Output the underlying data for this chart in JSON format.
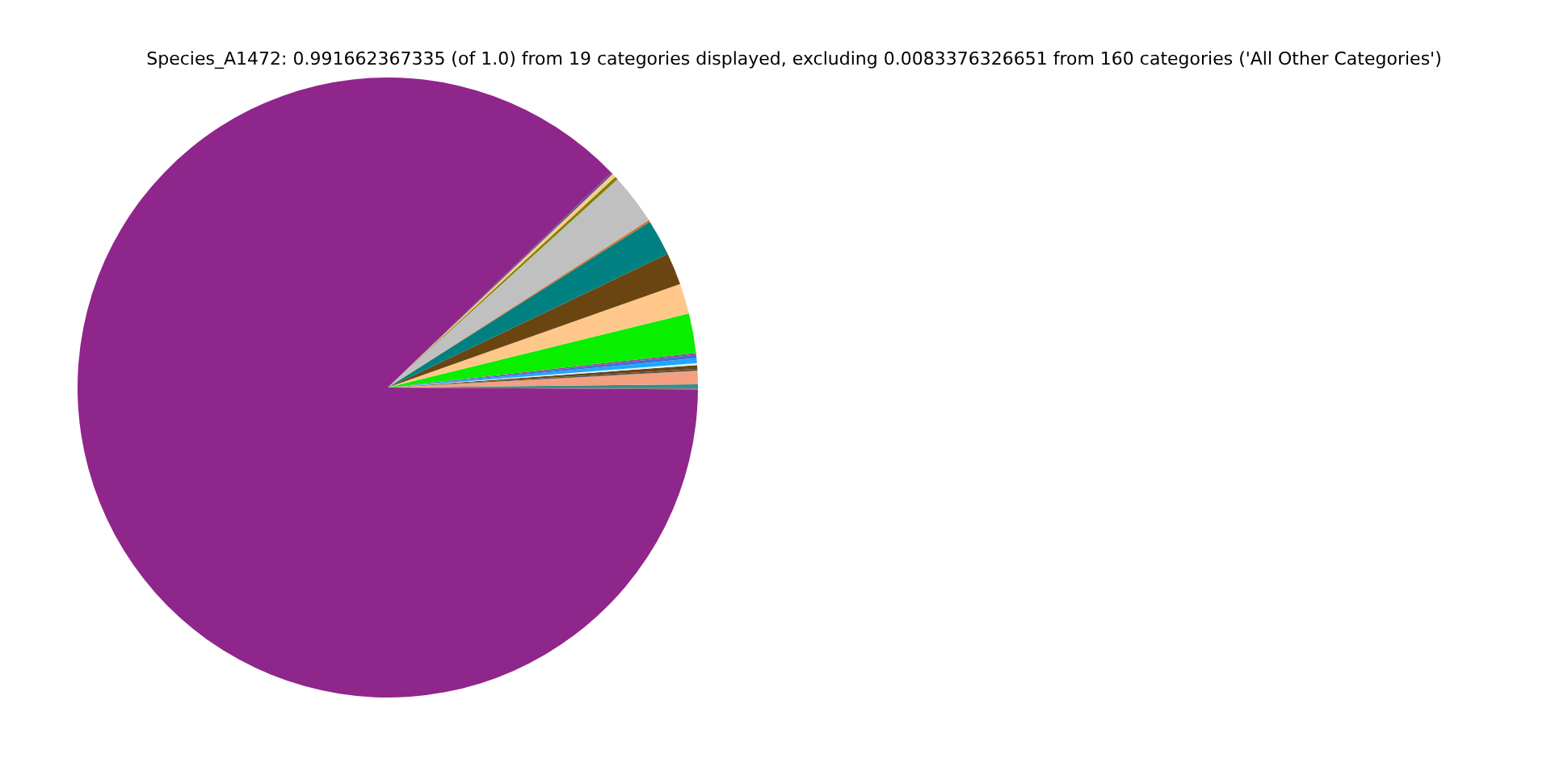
{
  "chart_data": {
    "type": "pie",
    "title": "Species_A1472: 0.991662367335 (of 1.0) from 19 categories displayed, excluding 0.0083376326651 from 160 categories ('All Other Categories')",
    "categories": [
      null,
      null,
      null,
      null,
      null,
      null,
      null,
      null,
      null,
      null,
      null,
      null,
      null,
      null,
      null,
      null,
      null,
      null,
      null
    ],
    "values": [
      0.1,
      0.17,
      0.69,
      0.1,
      0.19,
      0.11,
      0.25,
      0.17,
      0.1,
      2.06,
      1.58,
      1.67,
      1.89,
      0.1,
      2.64,
      0.17,
      0.2,
      0.1,
      87.71
    ],
    "colors": [
      "#808080",
      "#2f8f8f",
      "#f4a080",
      "#555555",
      "#6b4410",
      "#e0f0ff",
      "#1ea7ff",
      "#3c6fd0",
      "#a040a0",
      "#08f000",
      "#ffc88a",
      "#6a4512",
      "#008080",
      "#d07030",
      "#c0c0c0",
      "#808000",
      "#fdca8c",
      "#5a5a8a",
      "#8f268b"
    ],
    "legend": false
  }
}
